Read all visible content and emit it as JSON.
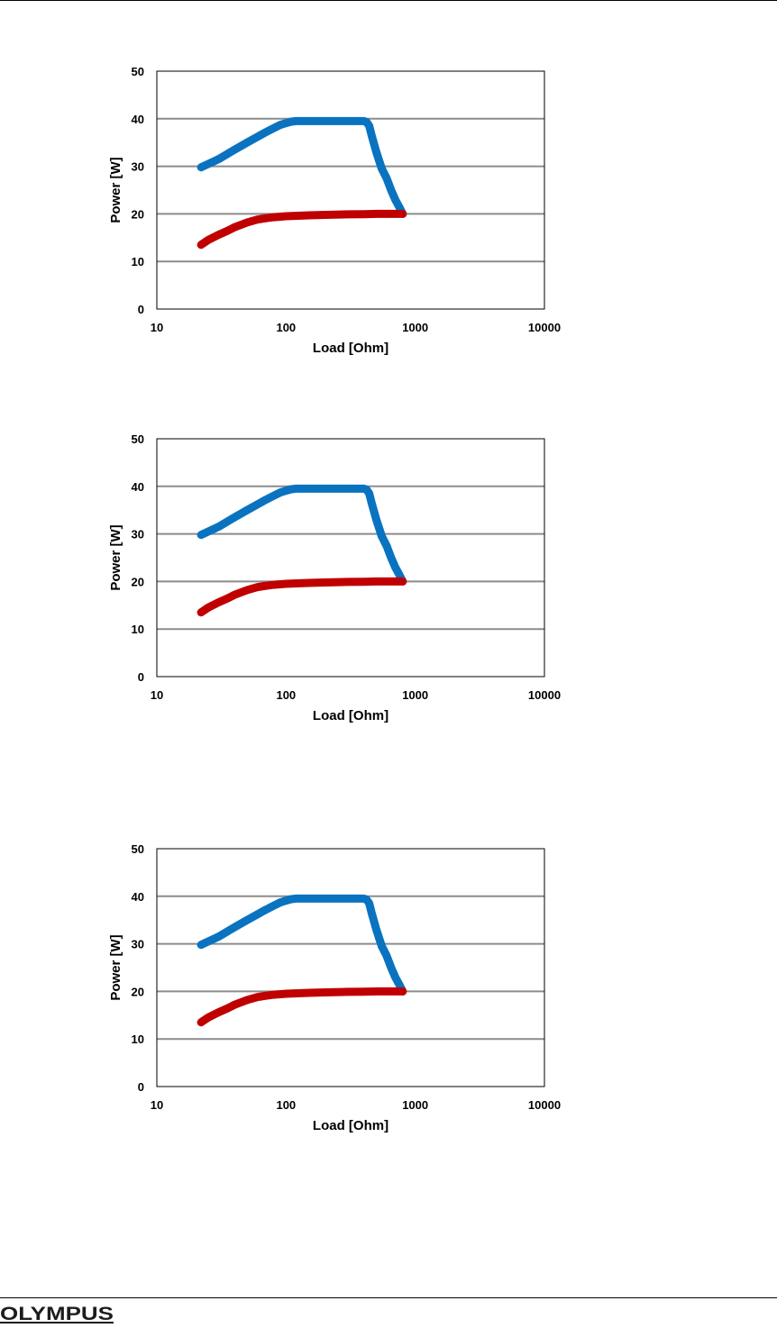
{
  "footer": {
    "logo_text": "OLYMPUS",
    "logo_color": "#1d1d1b"
  },
  "series_colors": {
    "upper": "#0a73c0",
    "lower": "#c00000"
  },
  "chart_data": [
    {
      "type": "line",
      "xlabel": "Load [Ohm]",
      "ylabel": "Power [W]",
      "xscale": "log",
      "xlim": [
        10,
        10000
      ],
      "ylim": [
        0,
        50
      ],
      "xticks": [
        "10",
        "100",
        "1000",
        "10000"
      ],
      "yticks": [
        "0",
        "10",
        "20",
        "30",
        "40",
        "50"
      ],
      "grid": "horizontal",
      "legend": "none",
      "series": [
        {
          "x": [
            22,
            30,
            40,
            50,
            60,
            70,
            80,
            90,
            100,
            110,
            120,
            150,
            200,
            300,
            400,
            420,
            440,
            460,
            500,
            550,
            600,
            650,
            700,
            750,
            800
          ],
          "y": [
            29.8,
            31.5,
            33.5,
            35,
            36.2,
            37.2,
            38,
            38.7,
            39.1,
            39.4,
            39.5,
            39.5,
            39.5,
            39.5,
            39.5,
            39.3,
            38.5,
            36.5,
            33,
            29.5,
            27.5,
            25,
            23,
            21.5,
            20
          ]
        },
        {
          "x": [
            22,
            25,
            30,
            35,
            40,
            50,
            60,
            70,
            80,
            100,
            150,
            200,
            300,
            400,
            500,
            600,
            700,
            800
          ],
          "y": [
            13.5,
            14.5,
            15.6,
            16.4,
            17.2,
            18.2,
            18.8,
            19.1,
            19.3,
            19.5,
            19.7,
            19.8,
            19.9,
            19.95,
            20,
            20,
            20,
            20
          ]
        }
      ]
    },
    {
      "type": "line",
      "xlabel": "Load [Ohm]",
      "ylabel": "Power [W]",
      "xscale": "log",
      "xlim": [
        10,
        10000
      ],
      "ylim": [
        0,
        50
      ],
      "xticks": [
        "10",
        "100",
        "1000",
        "10000"
      ],
      "yticks": [
        "0",
        "10",
        "20",
        "30",
        "40",
        "50"
      ],
      "grid": "horizontal",
      "legend": "none",
      "series": [
        {
          "x": [
            22,
            30,
            40,
            50,
            60,
            70,
            80,
            90,
            100,
            110,
            120,
            150,
            200,
            300,
            400,
            420,
            440,
            460,
            500,
            550,
            600,
            650,
            700,
            750,
            800
          ],
          "y": [
            29.8,
            31.5,
            33.5,
            35,
            36.2,
            37.2,
            38,
            38.7,
            39.1,
            39.4,
            39.5,
            39.5,
            39.5,
            39.5,
            39.5,
            39.3,
            38.5,
            36.5,
            33,
            29.5,
            27.5,
            25,
            23,
            21.5,
            20
          ]
        },
        {
          "x": [
            22,
            25,
            30,
            35,
            40,
            50,
            60,
            70,
            80,
            100,
            150,
            200,
            300,
            400,
            500,
            600,
            700,
            800
          ],
          "y": [
            13.5,
            14.5,
            15.6,
            16.4,
            17.2,
            18.2,
            18.8,
            19.1,
            19.3,
            19.5,
            19.7,
            19.8,
            19.9,
            19.95,
            20,
            20,
            20,
            20
          ]
        }
      ]
    },
    {
      "type": "line",
      "xlabel": "Load [Ohm]",
      "ylabel": "Power [W]",
      "xscale": "log",
      "xlim": [
        10,
        10000
      ],
      "ylim": [
        0,
        50
      ],
      "xticks": [
        "10",
        "100",
        "1000",
        "10000"
      ],
      "yticks": [
        "0",
        "10",
        "20",
        "30",
        "40",
        "50"
      ],
      "grid": "horizontal",
      "legend": "none",
      "series": [
        {
          "x": [
            22,
            30,
            40,
            50,
            60,
            70,
            80,
            90,
            100,
            110,
            120,
            150,
            200,
            300,
            400,
            420,
            440,
            460,
            500,
            550,
            600,
            650,
            700,
            750,
            800
          ],
          "y": [
            29.8,
            31.5,
            33.5,
            35,
            36.2,
            37.2,
            38,
            38.7,
            39.1,
            39.4,
            39.5,
            39.5,
            39.5,
            39.5,
            39.5,
            39.3,
            38.5,
            36.5,
            33,
            29.5,
            27.5,
            25,
            23,
            21.5,
            20
          ]
        },
        {
          "x": [
            22,
            25,
            30,
            35,
            40,
            50,
            60,
            70,
            80,
            100,
            150,
            200,
            300,
            400,
            500,
            600,
            700,
            800
          ],
          "y": [
            13.5,
            14.5,
            15.6,
            16.4,
            17.2,
            18.2,
            18.8,
            19.1,
            19.3,
            19.5,
            19.7,
            19.8,
            19.9,
            19.95,
            20,
            20,
            20,
            20
          ]
        }
      ]
    }
  ]
}
